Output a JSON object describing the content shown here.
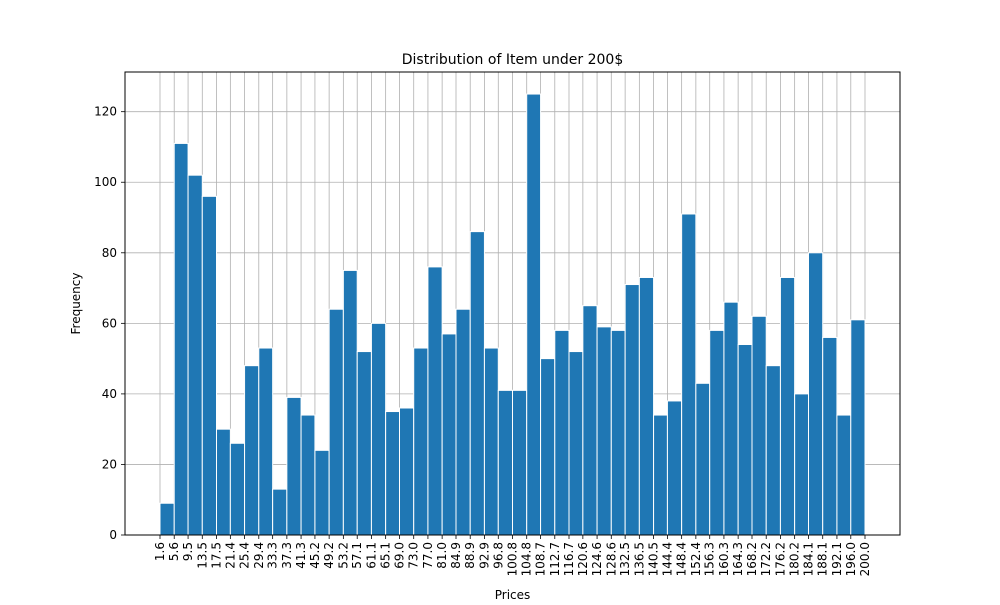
{
  "chart_data": {
    "type": "bar",
    "title": "Distribution of Item under 200$",
    "xlabel": "Prices",
    "ylabel": "Frequency",
    "ylim": [
      0,
      131.25
    ],
    "yticks": [
      0,
      20,
      40,
      60,
      80,
      100,
      120
    ],
    "grid": true,
    "bar_color": "#1f77b4",
    "edge_color": "#ffffff",
    "bin_edges": [
      1.6,
      5.6,
      9.5,
      13.5,
      17.5,
      21.4,
      25.4,
      29.4,
      33.3,
      37.3,
      41.3,
      45.2,
      49.2,
      53.2,
      57.1,
      61.1,
      65.1,
      69.0,
      73.0,
      77.0,
      81.0,
      84.9,
      88.9,
      92.9,
      96.8,
      100.8,
      104.8,
      108.7,
      112.7,
      116.7,
      120.6,
      124.6,
      128.6,
      132.5,
      136.5,
      140.5,
      144.4,
      148.4,
      152.4,
      156.3,
      160.3,
      164.3,
      168.2,
      172.2,
      176.2,
      180.2,
      184.1,
      188.1,
      192.1,
      196.0,
      200.0
    ],
    "tick_labels": [
      "1.6",
      "5.6",
      "9.5",
      "13.5",
      "17.5",
      "21.4",
      "25.4",
      "29.4",
      "33.3",
      "37.3",
      "41.3",
      "45.2",
      "49.2",
      "53.2",
      "57.1",
      "61.1",
      "65.1",
      "69.0",
      "73.0",
      "77.0",
      "81.0",
      "84.9",
      "88.9",
      "92.9",
      "96.8",
      "100.8",
      "104.8",
      "108.7",
      "112.7",
      "116.7",
      "120.6",
      "124.6",
      "128.6",
      "132.5",
      "136.5",
      "140.5",
      "144.4",
      "148.4",
      "152.4",
      "156.3",
      "160.3",
      "164.3",
      "168.2",
      "172.2",
      "176.2",
      "180.2",
      "184.1",
      "188.1",
      "192.1",
      "196.0",
      "200.0"
    ],
    "values": [
      9,
      111,
      102,
      96,
      30,
      26,
      48,
      53,
      13,
      39,
      34,
      24,
      64,
      75,
      52,
      60,
      35,
      36,
      53,
      76,
      57,
      64,
      86,
      53,
      41,
      41,
      125,
      50,
      58,
      52,
      65,
      59,
      58,
      71,
      73,
      34,
      38,
      91,
      43,
      58,
      66,
      54,
      62,
      48,
      73,
      40,
      80,
      56,
      34,
      61
    ]
  }
}
